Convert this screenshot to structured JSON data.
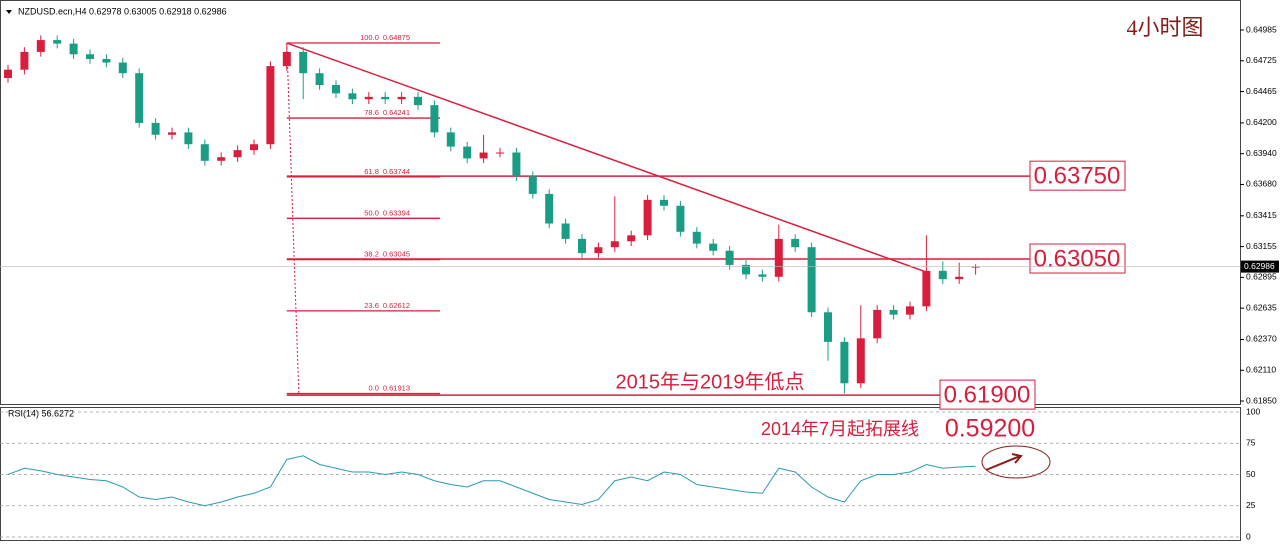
{
  "chart_data": {
    "type": "candlestick",
    "title": "NZDUSD.ecn,H4  0.62978 0.63005 0.62918 0.62986",
    "subtitle": "4小时图",
    "up_color": "#d81e3c",
    "down_color": "#1b9c85",
    "open": [
      0.6458,
      0.6465,
      0.648,
      0.649,
      0.6487,
      0.6478,
      0.6474,
      0.6471,
      0.6462,
      0.642,
      0.641,
      0.6412,
      0.6402,
      0.6388,
      0.6391,
      0.6397,
      0.6402,
      0.6468,
      0.648,
      0.6462,
      0.6452,
      0.6445,
      0.644,
      0.6442,
      0.644,
      0.6442,
      0.6435,
      0.6412,
      0.64,
      0.639,
      0.6395,
      0.6395,
      0.6375,
      0.636,
      0.6335,
      0.6322,
      0.631,
      0.6315,
      0.632,
      0.6325,
      0.6355,
      0.635,
      0.6328,
      0.6318,
      0.6312,
      0.63,
      0.6292,
      0.629,
      0.6322,
      0.6315,
      0.626,
      0.6235,
      0.62,
      0.6238,
      0.6262,
      0.6258,
      0.6265,
      0.6295,
      0.6288,
      0.62978
    ],
    "high": [
      0.6469,
      0.6484,
      0.6494,
      0.6494,
      0.6491,
      0.6482,
      0.6478,
      0.6475,
      0.6466,
      0.6424,
      0.6416,
      0.6416,
      0.6406,
      0.6395,
      0.6401,
      0.6406,
      0.6472,
      0.64875,
      0.6484,
      0.6466,
      0.6456,
      0.6449,
      0.6446,
      0.6446,
      0.6446,
      0.6446,
      0.6439,
      0.6416,
      0.6404,
      0.641,
      0.6399,
      0.6399,
      0.6379,
      0.6364,
      0.6339,
      0.6326,
      0.6319,
      0.6358,
      0.6329,
      0.6359,
      0.6359,
      0.6354,
      0.6332,
      0.6322,
      0.6316,
      0.6304,
      0.6296,
      0.6334,
      0.6326,
      0.6319,
      0.6264,
      0.6239,
      0.6266,
      0.6266,
      0.6266,
      0.6269,
      0.6325,
      0.6303,
      0.6302,
      0.63005
    ],
    "low": [
      0.6454,
      0.6461,
      0.6476,
      0.6483,
      0.6474,
      0.647,
      0.6467,
      0.6458,
      0.6416,
      0.6406,
      0.6406,
      0.6398,
      0.6384,
      0.6384,
      0.6387,
      0.6393,
      0.6398,
      0.6464,
      0.644,
      0.6448,
      0.6441,
      0.6436,
      0.6436,
      0.6436,
      0.6436,
      0.6431,
      0.6408,
      0.6396,
      0.6386,
      0.6386,
      0.6391,
      0.6371,
      0.6356,
      0.6331,
      0.6318,
      0.6306,
      0.6306,
      0.6311,
      0.6316,
      0.6321,
      0.6346,
      0.6324,
      0.6314,
      0.6308,
      0.6296,
      0.6288,
      0.6286,
      0.6286,
      0.6311,
      0.6256,
      0.6219,
      0.61913,
      0.6196,
      0.6234,
      0.6254,
      0.6254,
      0.6261,
      0.6284,
      0.6284,
      0.62918
    ],
    "close": [
      0.6465,
      0.648,
      0.649,
      0.6487,
      0.6478,
      0.6474,
      0.6471,
      0.6462,
      0.642,
      0.641,
      0.6412,
      0.6402,
      0.6388,
      0.6391,
      0.6397,
      0.6402,
      0.6468,
      0.648,
      0.6462,
      0.6452,
      0.6445,
      0.644,
      0.6442,
      0.644,
      0.6442,
      0.6435,
      0.6412,
      0.64,
      0.639,
      0.6395,
      0.6395,
      0.6375,
      0.636,
      0.6335,
      0.6322,
      0.631,
      0.6315,
      0.632,
      0.6325,
      0.6355,
      0.635,
      0.6328,
      0.6318,
      0.6312,
      0.63,
      0.6292,
      0.629,
      0.6322,
      0.6315,
      0.626,
      0.6235,
      0.62,
      0.6238,
      0.6262,
      0.6258,
      0.6265,
      0.6295,
      0.6288,
      0.629,
      0.62986
    ],
    "ylim": [
      0.61825,
      0.65171
    ],
    "yticks": [
      0.64985,
      0.64725,
      0.64465,
      {
        "value": 0.642,
        "label": "0.64200"
      },
      {
        "value": 0.6394,
        "label": "0.63940"
      },
      {
        "value": 0.6368,
        "label": "0.63680"
      },
      0.63415,
      0.63155,
      0.62895,
      0.62635,
      {
        "value": 0.6237,
        "label": "0.62370"
      },
      {
        "value": 0.6211,
        "label": "0.62110"
      },
      {
        "value": 0.6185,
        "label": "0.61850"
      }
    ],
    "last_price": 0.62986,
    "trendline": {
      "x": [
        17,
        56
      ],
      "y": [
        0.64875,
        0.6294
      ],
      "color": "#d81e3c"
    },
    "fib_levels": [
      {
        "ratio": "100.0",
        "price": 0.64875
      },
      {
        "ratio": "78.6",
        "price": 0.64241
      },
      {
        "ratio": "61.8",
        "price": 0.63744
      },
      {
        "ratio": "50.0",
        "price": 0.63394
      },
      {
        "ratio": "38.2",
        "price": 0.63045
      },
      {
        "ratio": "23.6",
        "price": 0.62612
      },
      {
        "ratio": "0.0",
        "price": 0.61913
      }
    ],
    "levels": [
      {
        "value": 0.6375,
        "label": "0.63750"
      },
      {
        "value": 0.6305,
        "label": "0.63050"
      },
      {
        "value": 0.619,
        "label": "0.61900"
      }
    ],
    "annotations": [
      "2015年与2019年低点",
      "2014年7月起拓展线",
      "0.59200"
    ],
    "rsi": {
      "title": "RSI(14) 56.6272",
      "color": "#2a9bb0",
      "ylim": [
        0,
        100
      ],
      "yticks": [
        100,
        75,
        50,
        25,
        0
      ],
      "values": [
        50,
        55,
        53,
        50,
        48,
        46,
        45,
        40,
        32,
        30,
        32,
        28,
        25,
        28,
        32,
        35,
        40,
        62,
        65,
        58,
        55,
        52,
        52,
        50,
        52,
        50,
        45,
        42,
        40,
        45,
        45,
        40,
        35,
        30,
        28,
        26,
        30,
        45,
        48,
        45,
        52,
        50,
        42,
        40,
        38,
        36,
        35,
        55,
        52,
        40,
        32,
        28,
        45,
        50,
        50,
        52,
        58,
        55,
        56,
        56.6272
      ]
    }
  }
}
